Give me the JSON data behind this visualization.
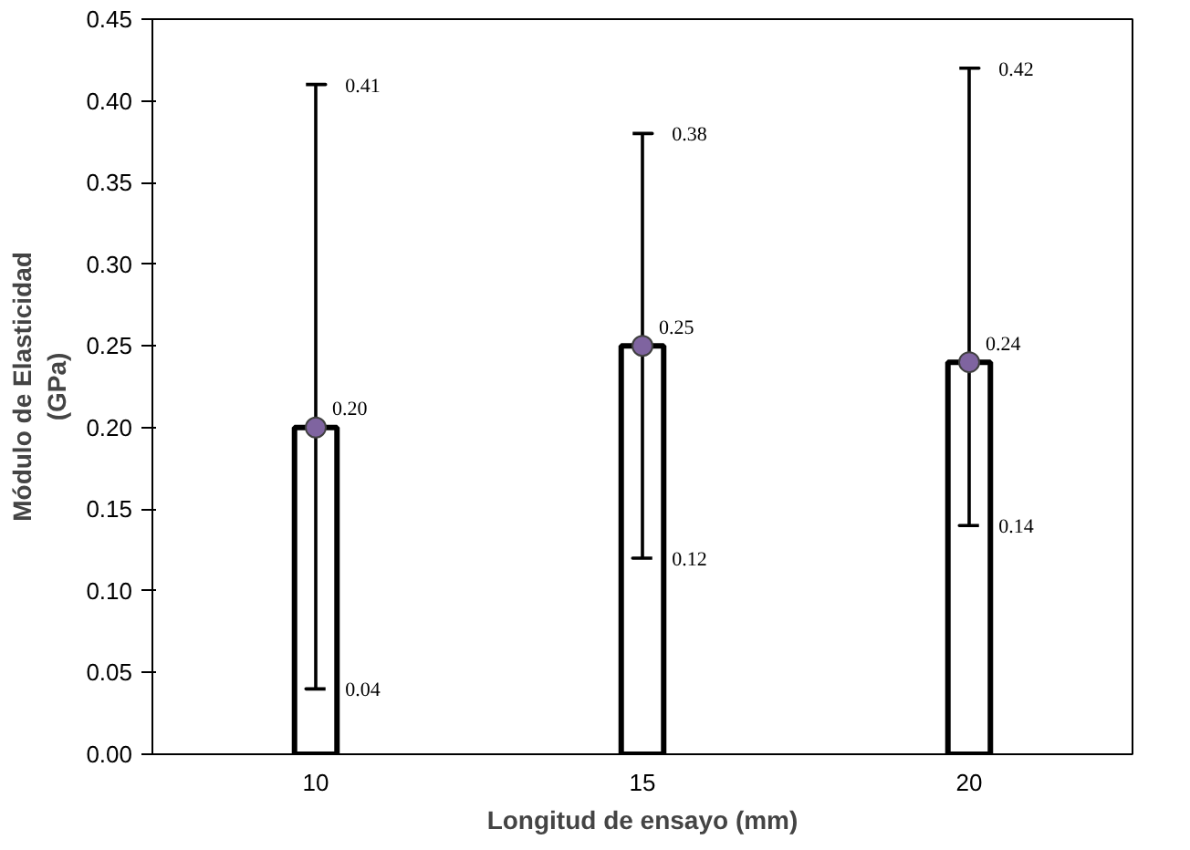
{
  "chart_data": {
    "type": "bar",
    "xlabel": "Longitud de ensayo (mm)",
    "ylabel": "Módulo de Elasticidad\n(GPa)",
    "categories": [
      "10",
      "15",
      "20"
    ],
    "ylim": [
      0,
      0.45
    ],
    "yticks": [
      {
        "value": 0,
        "label": "0.00"
      },
      {
        "value": 0.05,
        "label": "0.05"
      },
      {
        "value": 0.1,
        "label": "0.10"
      },
      {
        "value": 0.15,
        "label": "0.15"
      },
      {
        "value": 0.2,
        "label": "0.20"
      },
      {
        "value": 0.25,
        "label": "0.25"
      },
      {
        "value": 0.3,
        "label": "0.30"
      },
      {
        "value": 0.35,
        "label": "0.35"
      },
      {
        "value": 0.4,
        "label": "0.40"
      },
      {
        "value": 0.45,
        "label": "0.45"
      }
    ],
    "grid": false,
    "series": [
      {
        "type": "bar",
        "color": "#ffffff",
        "values": [
          0.2,
          0.25,
          0.24
        ],
        "errors": [
          [
            0.04,
            0.41
          ],
          [
            0.12,
            0.38
          ],
          [
            0.14,
            0.42
          ]
        ],
        "value_labels": [
          "0.20",
          "0.25",
          "0.24"
        ]
      },
      {
        "type": "scatter",
        "color": "#7f64a0",
        "x": [
          "10",
          "15",
          "20"
        ],
        "values": [
          0.2,
          0.25,
          0.24
        ],
        "marker": "circle"
      }
    ],
    "annotations": [
      "0.41",
      "0.04",
      "0.38",
      "0.12",
      "0.42",
      "0.14"
    ]
  }
}
